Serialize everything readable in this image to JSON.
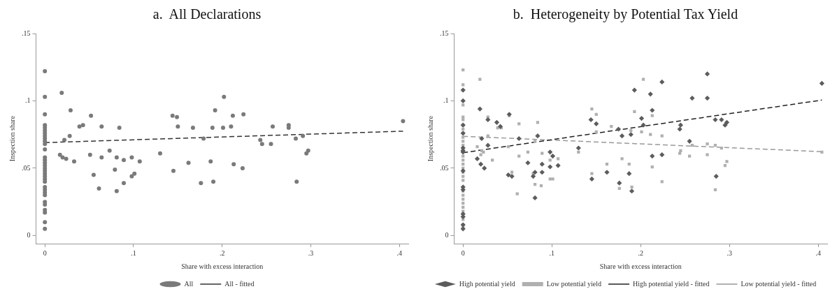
{
  "chart_data": [
    {
      "type": "scatter",
      "title": "a.  All Declarations",
      "xlabel": "Share with excess interaction",
      "ylabel": "Inspection share",
      "xlim": [
        -0.01,
        0.41
      ],
      "ylim": [
        -0.006,
        0.15
      ],
      "xticks": [
        0,
        {
          "value": 0.1,
          "label": ".1"
        },
        {
          "value": 0.2,
          "label": ".2"
        },
        {
          "value": 0.3,
          "label": ".3"
        },
        {
          "value": 0.4,
          "label": ".4"
        }
      ],
      "yticks": [
        0,
        {
          "value": 0.05,
          "label": ".05"
        },
        {
          "value": 0.1,
          "label": ".1"
        },
        {
          "value": 0.15,
          "label": ".15"
        }
      ],
      "legend": "bottom",
      "series": [
        {
          "name": "All",
          "type": "scatter",
          "marker": "circle",
          "color": "#7a7a7a",
          "x": [
            0,
            0,
            0,
            0,
            0,
            0,
            0,
            0,
            0,
            0,
            0,
            0,
            0,
            0,
            0,
            0,
            0,
            0,
            0,
            0,
            0,
            0,
            0,
            0,
            0,
            0,
            0,
            0,
            0,
            0,
            0,
            0,
            0.019,
            0.017,
            0.02,
            0.024,
            0.022,
            0.029,
            0.028,
            0.033,
            0.039,
            0.043,
            0.052,
            0.051,
            0.055,
            0.061,
            0.064,
            0.064,
            0.073,
            0.079,
            0.081,
            0.081,
            0.084,
            0.089,
            0.089,
            0.098,
            0.098,
            0.101,
            0.107,
            0.13,
            0.144,
            0.149,
            0.15,
            0.145,
            0.162,
            0.167,
            0.176,
            0.179,
            0.187,
            0.189,
            0.19,
            0.192,
            0.201,
            0.202,
            0.212,
            0.224,
            0.21,
            0.213,
            0.223,
            0.257,
            0.275,
            0.275,
            0.243,
            0.245,
            0.255,
            0.283,
            0.291,
            0.295,
            0.297,
            0.284,
            0.404
          ],
          "values": [
            0.122,
            0.103,
            0.09,
            0.082,
            0.08,
            0.078,
            0.076,
            0.074,
            0.072,
            0.07,
            0.068,
            0.064,
            0.058,
            0.056,
            0.054,
            0.052,
            0.05,
            0.048,
            0.046,
            0.044,
            0.042,
            0.04,
            0.036,
            0.034,
            0.032,
            0.03,
            0.025,
            0.023,
            0.019,
            0.017,
            0.01,
            0.005,
            0.106,
            0.06,
            0.058,
            0.057,
            0.071,
            0.093,
            0.074,
            0.055,
            0.081,
            0.082,
            0.089,
            0.06,
            0.045,
            0.035,
            0.081,
            0.058,
            0.063,
            0.049,
            0.058,
            0.033,
            0.08,
            0.039,
            0.056,
            0.058,
            0.044,
            0.046,
            0.055,
            0.061,
            0.089,
            0.088,
            0.081,
            0.048,
            0.054,
            0.08,
            0.039,
            0.072,
            0.055,
            0.08,
            0.04,
            0.093,
            0.08,
            0.103,
            0.089,
            0.09,
            0.081,
            0.053,
            0.05,
            0.081,
            0.082,
            0.08,
            0.071,
            0.068,
            0.068,
            0.072,
            0.074,
            0.061,
            0.063,
            0.04,
            0.085
          ]
        },
        {
          "name": "All - fitted",
          "type": "line",
          "line_style": "dashed",
          "marker": "none",
          "color": "#333333",
          "x": [
            0,
            0.404
          ],
          "values": [
            0.069,
            0.0775
          ]
        }
      ]
    },
    {
      "type": "scatter",
      "title": "b.  Heterogeneity by Potential Tax Yield",
      "xlabel": "Share with excess interaction",
      "ylabel": "Inspection share",
      "xlim": [
        -0.01,
        0.41
      ],
      "ylim": [
        -0.006,
        0.15
      ],
      "xticks": [
        0,
        {
          "value": 0.1,
          "label": ".1"
        },
        {
          "value": 0.2,
          "label": ".2"
        },
        {
          "value": 0.3,
          "label": ".3"
        },
        {
          "value": 0.4,
          "label": ".4"
        }
      ],
      "yticks": [
        0,
        {
          "value": 0.05,
          "label": ".05"
        },
        {
          "value": 0.1,
          "label": ".1"
        },
        {
          "value": 0.15,
          "label": ".15"
        }
      ],
      "legend": "bottom",
      "series": [
        {
          "name": "High potential yield",
          "type": "scatter",
          "marker": "diamond",
          "color": "#5c5c5c",
          "x": [
            0,
            0,
            0,
            0,
            0,
            0,
            0,
            0,
            0,
            0,
            0,
            0,
            0,
            0,
            0.019,
            0.021,
            0.016,
            0.02,
            0.024,
            0.028,
            0.028,
            0.038,
            0.042,
            0.052,
            0.051,
            0.055,
            0.063,
            0.073,
            0.079,
            0.081,
            0.081,
            0.084,
            0.089,
            0.089,
            0.098,
            0.101,
            0.098,
            0.107,
            0.13,
            0.144,
            0.15,
            0.145,
            0.162,
            0.176,
            0.179,
            0.187,
            0.189,
            0.19,
            0.175,
            0.193,
            0.211,
            0.224,
            0.213,
            0.201,
            0.203,
            0.213,
            0.224,
            0.245,
            0.244,
            0.255,
            0.258,
            0.275,
            0.275,
            0.284,
            0.291,
            0.297,
            0.295,
            0.285,
            0.404
          ],
          "values": [
            0.108,
            0.1,
            0.082,
            0.076,
            0.065,
            0.063,
            0.062,
            0.048,
            0.036,
            0.034,
            0.016,
            0.014,
            0.008,
            0.005,
            0.094,
            0.072,
            0.057,
            0.053,
            0.05,
            0.086,
            0.067,
            0.084,
            0.081,
            0.09,
            0.045,
            0.044,
            0.072,
            0.054,
            0.044,
            0.028,
            0.047,
            0.074,
            0.053,
            0.047,
            0.062,
            0.059,
            0.051,
            0.052,
            0.065,
            0.086,
            0.083,
            0.042,
            0.047,
            0.039,
            0.074,
            0.046,
            0.075,
            0.033,
            0.079,
            0.108,
            0.105,
            0.114,
            0.093,
            0.087,
            0.082,
            0.059,
            0.06,
            0.082,
            0.079,
            0.07,
            0.102,
            0.12,
            0.102,
            0.086,
            0.086,
            0.084,
            0.082,
            0.044,
            0.113
          ]
        },
        {
          "name": "Low potential yield",
          "type": "scatter",
          "marker": "square",
          "color": "#b0b0b0",
          "x": [
            0,
            0,
            0,
            0,
            0,
            0,
            0,
            0,
            0,
            0,
            0,
            0,
            0,
            0,
            0,
            0,
            0,
            0,
            0,
            0,
            0,
            0,
            0,
            0,
            0,
            0,
            0,
            0.019,
            0.016,
            0.02,
            0.021,
            0.023,
            0.028,
            0.028,
            0.033,
            0.039,
            0.043,
            0.052,
            0.051,
            0.055,
            0.061,
            0.063,
            0.063,
            0.073,
            0.079,
            0.081,
            0.081,
            0.084,
            0.088,
            0.089,
            0.098,
            0.098,
            0.101,
            0.107,
            0.13,
            0.145,
            0.15,
            0.15,
            0.145,
            0.162,
            0.167,
            0.176,
            0.179,
            0.187,
            0.19,
            0.203,
            0.193,
            0.213,
            0.189,
            0.201,
            0.211,
            0.224,
            0.213,
            0.224,
            0.245,
            0.244,
            0.255,
            0.258,
            0.275,
            0.275,
            0.284,
            0.291,
            0.297,
            0.295,
            0.284,
            0.404
          ],
          "values": [
            0.123,
            0.112,
            0.097,
            0.088,
            0.086,
            0.082,
            0.079,
            0.076,
            0.073,
            0.07,
            0.067,
            0.059,
            0.056,
            0.053,
            0.05,
            0.047,
            0.044,
            0.041,
            0.033,
            0.03,
            0.027,
            0.024,
            0.021,
            0.018,
            0.012,
            0.008,
            0.006,
            0.116,
            0.066,
            0.06,
            0.063,
            0.062,
            0.088,
            0.074,
            0.056,
            0.08,
            0.08,
            0.089,
            0.066,
            0.047,
            0.031,
            0.083,
            0.059,
            0.062,
            0.046,
            0.07,
            0.038,
            0.084,
            0.037,
            0.061,
            0.056,
            0.042,
            0.042,
            0.057,
            0.062,
            0.094,
            0.09,
            0.077,
            0.046,
            0.053,
            0.081,
            0.035,
            0.057,
            0.053,
            0.036,
            0.116,
            0.092,
            0.089,
            0.078,
            0.077,
            0.075,
            0.074,
            0.051,
            0.04,
            0.063,
            0.061,
            0.059,
            0.067,
            0.068,
            0.06,
            0.067,
            0.065,
            0.055,
            0.052,
            0.034,
            0.062
          ]
        },
        {
          "name": "High potential yield - fitted",
          "type": "line",
          "line_style": "dashed",
          "marker": "none",
          "color": "#222222",
          "x": [
            0,
            0.404
          ],
          "values": [
            0.0615,
            0.1006
          ]
        },
        {
          "name": "Low potential yield - fitted",
          "type": "line",
          "line_style": "dashed",
          "marker": "none",
          "color": "#999999",
          "x": [
            0,
            0.404
          ],
          "values": [
            0.0737,
            0.0623
          ]
        }
      ]
    }
  ]
}
